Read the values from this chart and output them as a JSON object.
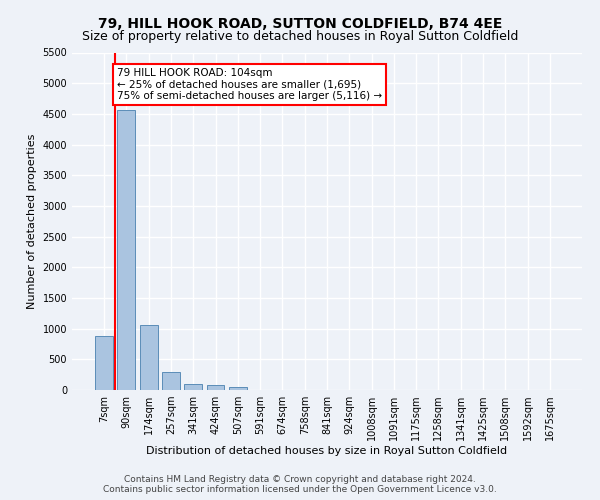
{
  "title": "79, HILL HOOK ROAD, SUTTON COLDFIELD, B74 4EE",
  "subtitle": "Size of property relative to detached houses in Royal Sutton Coldfield",
  "xlabel": "Distribution of detached houses by size in Royal Sutton Coldfield",
  "ylabel": "Number of detached properties",
  "footnote1": "Contains HM Land Registry data © Crown copyright and database right 2024.",
  "footnote2": "Contains public sector information licensed under the Open Government Licence v3.0.",
  "categories": [
    "7sqm",
    "90sqm",
    "174sqm",
    "257sqm",
    "341sqm",
    "424sqm",
    "507sqm",
    "591sqm",
    "674sqm",
    "758sqm",
    "841sqm",
    "924sqm",
    "1008sqm",
    "1091sqm",
    "1175sqm",
    "1258sqm",
    "1341sqm",
    "1425sqm",
    "1508sqm",
    "1592sqm",
    "1675sqm"
  ],
  "values": [
    880,
    4570,
    1060,
    290,
    90,
    75,
    50,
    0,
    0,
    0,
    0,
    0,
    0,
    0,
    0,
    0,
    0,
    0,
    0,
    0,
    0
  ],
  "bar_color": "#aac4e0",
  "bar_edge_color": "#5b8db8",
  "vline_x": 0.5,
  "vline_color": "red",
  "annotation_text": "79 HILL HOOK ROAD: 104sqm\n← 25% of detached houses are smaller (1,695)\n75% of semi-detached houses are larger (5,116) →",
  "annotation_box_color": "white",
  "annotation_box_edge": "red",
  "ylim": [
    0,
    5500
  ],
  "yticks": [
    0,
    500,
    1000,
    1500,
    2000,
    2500,
    3000,
    3500,
    4000,
    4500,
    5000,
    5500
  ],
  "bg_color": "#eef2f8",
  "plot_bg_color": "#eef2f8",
  "grid_color": "white",
  "title_fontsize": 10,
  "subtitle_fontsize": 9,
  "axis_label_fontsize": 8,
  "tick_fontsize": 7,
  "footnote_fontsize": 6.5,
  "annot_fontsize": 7.5
}
